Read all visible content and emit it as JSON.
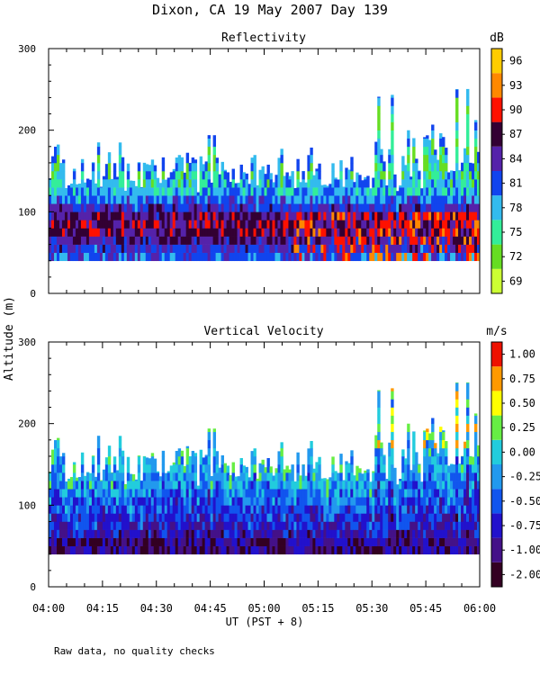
{
  "main_title": "Dixon, CA 19 May 2007  Day 139",
  "footnote": "Raw data, no quality checks",
  "y_axis_label": "Altitude (m)",
  "x_axis_label": "UT  (PST + 8)",
  "x_tick_labels": [
    "04:00",
    "04:15",
    "04:30",
    "04:45",
    "05:00",
    "05:15",
    "05:30",
    "05:45",
    "06:00"
  ],
  "y_tick_labels": [
    "0",
    "100",
    "200",
    "300"
  ],
  "chart_data": [
    {
      "type": "heatmap",
      "title": "Reflectivity",
      "units": "dB",
      "xlabel": "UT  (PST + 8)",
      "ylabel": "Altitude (m)",
      "x_range": [
        "04:00",
        "06:00"
      ],
      "ylim": [
        0,
        300
      ],
      "colorbar_labels": [
        "69",
        "72",
        "75",
        "78",
        "81",
        "84",
        "87",
        "90",
        "93",
        "96"
      ],
      "colorbar_colors": [
        "#ccff33",
        "#66dd22",
        "#33ee99",
        "#33bbee",
        "#1144ee",
        "#5522aa",
        "#330033",
        "#ff1100",
        "#ff8800",
        "#ffcc00"
      ],
      "base_altitude": 40,
      "typical_top_altitude": 140,
      "max_echo_altitude": 260,
      "dominant_values": [
        "81",
        "84",
        "87"
      ],
      "peak_values": [
        "90",
        "93"
      ]
    },
    {
      "type": "heatmap",
      "title": "Vertical Velocity",
      "units": "m/s",
      "xlabel": "UT  (PST + 8)",
      "ylabel": "Altitude (m)",
      "x_range": [
        "04:00",
        "06:00"
      ],
      "ylim": [
        0,
        300
      ],
      "colorbar_labels": [
        "-2.00",
        "-1.00",
        "-0.75",
        "-0.50",
        "-0.25",
        "0.00",
        "0.25",
        "0.50",
        "0.75",
        "1.00"
      ],
      "colorbar_colors": [
        "#330022",
        "#441188",
        "#2211cc",
        "#1155ee",
        "#2299ee",
        "#22ccdd",
        "#66ee44",
        "#ffff00",
        "#ff9900",
        "#ee1100"
      ],
      "base_altitude": 40,
      "typical_top_altitude": 140,
      "max_echo_altitude": 260,
      "dominant_values": [
        "-0.75",
        "-0.50",
        "-0.25"
      ],
      "peak_values": [
        "0.50",
        "0.75"
      ]
    }
  ]
}
